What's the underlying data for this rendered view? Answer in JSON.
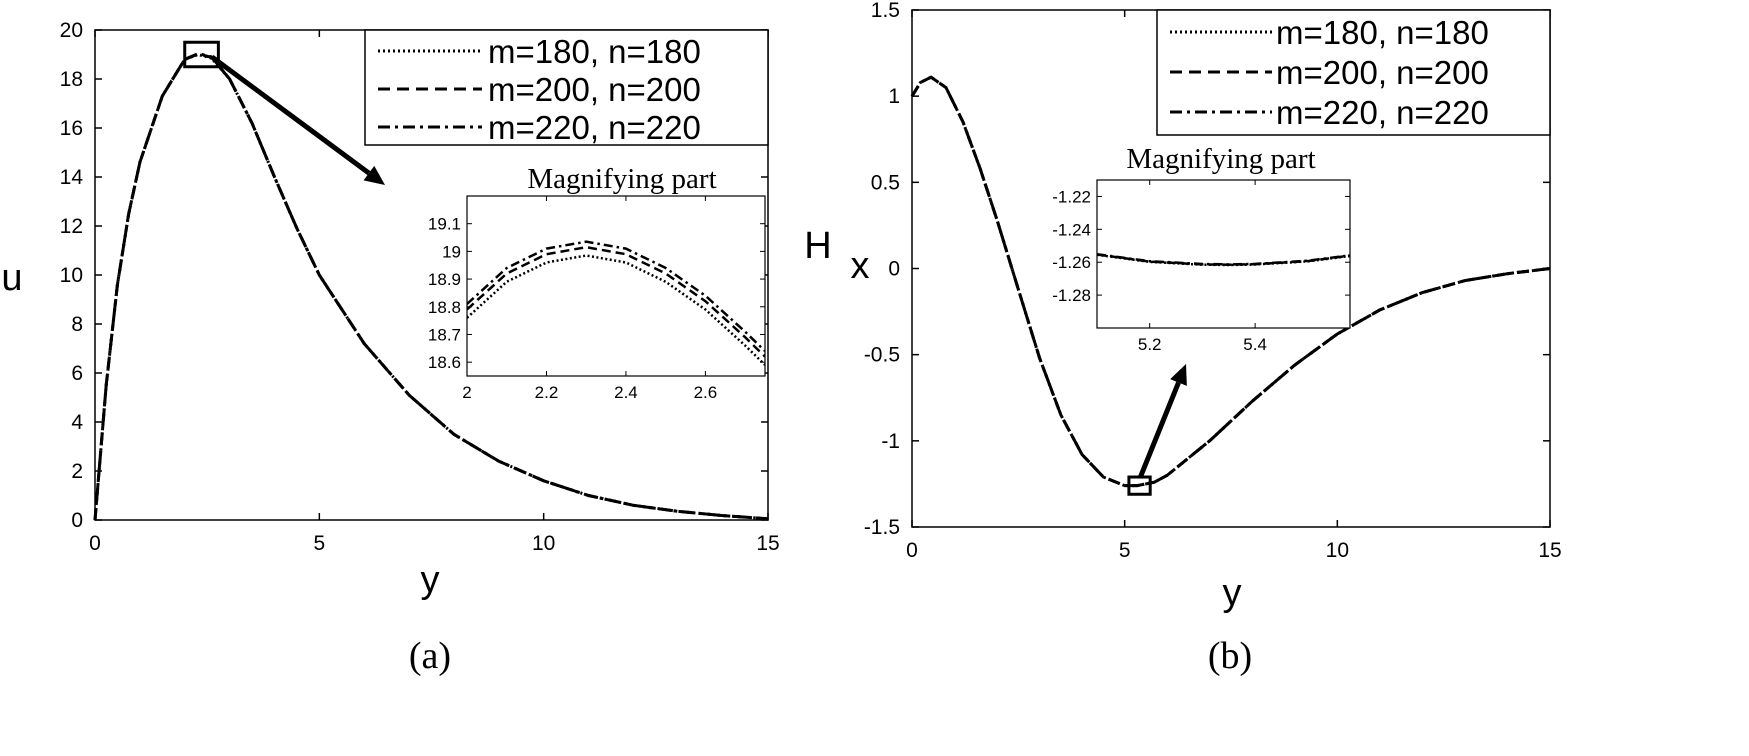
{
  "chart_data": [
    {
      "type": "line",
      "panel_label": "(a)",
      "xlabel": "y",
      "ylabel": "u",
      "xlim": [
        0,
        15
      ],
      "ylim": [
        0,
        20
      ],
      "x_ticks": [
        0,
        5,
        10,
        15
      ],
      "y_ticks": [
        0,
        2,
        4,
        6,
        8,
        10,
        12,
        14,
        16,
        18,
        20
      ],
      "x": [
        0,
        0.25,
        0.5,
        0.75,
        1,
        1.5,
        2,
        2.3,
        2.6,
        3,
        3.5,
        4,
        4.5,
        5,
        6,
        7,
        8,
        9,
        10,
        11,
        12,
        13,
        14,
        15
      ],
      "series": [
        {
          "name": "m=180, n=180",
          "style": "dotted",
          "values": [
            0,
            5.5,
            9.6,
            12.5,
            14.6,
            17.3,
            18.8,
            19.0,
            18.85,
            18.0,
            16.2,
            14.0,
            11.9,
            10.0,
            7.2,
            5.1,
            3.5,
            2.4,
            1.6,
            1.0,
            0.6,
            0.35,
            0.18,
            0.05
          ]
        },
        {
          "name": "m=200, n=200",
          "style": "dashed",
          "values": [
            0,
            5.5,
            9.6,
            12.5,
            14.6,
            17.3,
            18.8,
            19.02,
            18.88,
            18.0,
            16.2,
            14.0,
            11.9,
            10.0,
            7.2,
            5.1,
            3.5,
            2.4,
            1.6,
            1.0,
            0.6,
            0.35,
            0.18,
            0.05
          ]
        },
        {
          "name": "m=220, n=220",
          "style": "dashdot",
          "values": [
            0,
            5.5,
            9.6,
            12.5,
            14.6,
            17.3,
            18.8,
            19.04,
            18.9,
            18.0,
            16.2,
            14.0,
            11.9,
            10.0,
            7.2,
            5.1,
            3.5,
            2.4,
            1.6,
            1.0,
            0.6,
            0.35,
            0.18,
            0.05
          ]
        }
      ],
      "highlight_box": {
        "x": [
          2.0,
          2.75
        ],
        "y": [
          18.5,
          19.5
        ]
      },
      "legend_position": "top-right",
      "inset": {
        "title": "Magnifying part",
        "position": "right-middle",
        "xlim": [
          2,
          2.75
        ],
        "ylim": [
          18.55,
          19.2
        ],
        "x_ticks": [
          2,
          2.2,
          2.4,
          2.6
        ],
        "y_ticks": [
          18.6,
          18.7,
          18.8,
          18.9,
          19,
          19.1
        ],
        "x": [
          2,
          2.1,
          2.2,
          2.3,
          2.4,
          2.5,
          2.6,
          2.7,
          2.75
        ],
        "series": [
          {
            "name": "m=180, n=180",
            "style": "dotted",
            "values": [
              18.76,
              18.89,
              18.96,
              18.985,
              18.96,
              18.89,
              18.79,
              18.66,
              18.59
            ]
          },
          {
            "name": "m=200, n=200",
            "style": "dashed",
            "values": [
              18.79,
              18.92,
              18.99,
              19.015,
              18.99,
              18.92,
              18.82,
              18.69,
              18.62
            ]
          },
          {
            "name": "m=220, n=220",
            "style": "dashdot",
            "values": [
              18.81,
              18.94,
              19.01,
              19.035,
              19.01,
              18.94,
              18.84,
              18.71,
              18.64
            ]
          }
        ]
      }
    },
    {
      "type": "line",
      "panel_label": "(b)",
      "xlabel": "y",
      "ylabel": "H",
      "ylabel_sub": "x",
      "xlim": [
        0,
        15
      ],
      "ylim": [
        -1.5,
        1.5
      ],
      "x_ticks": [
        0,
        5,
        10,
        15
      ],
      "y_ticks": [
        -1.5,
        -1,
        -0.5,
        0,
        0.5,
        1,
        1.5
      ],
      "x": [
        0,
        0.2,
        0.45,
        0.8,
        1.2,
        1.6,
        2,
        2.5,
        3,
        3.5,
        4,
        4.5,
        5,
        5.3,
        5.7,
        6,
        7,
        8,
        9,
        10,
        11,
        12,
        13,
        14,
        15
      ],
      "series": [
        {
          "name": "m=180, n=180",
          "style": "dotted",
          "values": [
            1.0,
            1.08,
            1.11,
            1.05,
            0.85,
            0.58,
            0.28,
            -0.12,
            -0.52,
            -0.85,
            -1.08,
            -1.21,
            -1.26,
            -1.26,
            -1.24,
            -1.2,
            -1.0,
            -0.77,
            -0.56,
            -0.38,
            -0.24,
            -0.14,
            -0.07,
            -0.03,
            0.0
          ]
        },
        {
          "name": "m=200, n=200",
          "style": "dashed",
          "values": [
            1.0,
            1.08,
            1.11,
            1.05,
            0.85,
            0.58,
            0.28,
            -0.12,
            -0.52,
            -0.85,
            -1.08,
            -1.21,
            -1.26,
            -1.26,
            -1.24,
            -1.2,
            -1.0,
            -0.77,
            -0.56,
            -0.38,
            -0.24,
            -0.14,
            -0.07,
            -0.03,
            0.0
          ]
        },
        {
          "name": "m=220, n=220",
          "style": "dashdot",
          "values": [
            1.0,
            1.08,
            1.11,
            1.05,
            0.85,
            0.58,
            0.28,
            -0.12,
            -0.52,
            -0.85,
            -1.08,
            -1.21,
            -1.26,
            -1.26,
            -1.24,
            -1.2,
            -1.0,
            -0.77,
            -0.56,
            -0.38,
            -0.24,
            -0.14,
            -0.07,
            -0.03,
            0.0
          ]
        }
      ],
      "highlight_box": {
        "x": [
          5.1,
          5.6
        ],
        "y": [
          -1.31,
          -1.21
        ]
      },
      "legend_position": "top-right",
      "inset": {
        "title": "Magnifying part",
        "position": "center-top",
        "xlim": [
          5.1,
          5.58
        ],
        "ylim": [
          -1.3,
          -1.21
        ],
        "x_ticks": [
          5.2,
          5.4
        ],
        "y_ticks": [
          -1.22,
          -1.24,
          -1.26,
          -1.28
        ],
        "x": [
          5.1,
          5.2,
          5.3,
          5.35,
          5.4,
          5.5,
          5.58
        ],
        "series": [
          {
            "name": "m=180, n=180",
            "style": "dotted",
            "values": [
              -1.2555,
              -1.2598,
              -1.2615,
              -1.2617,
              -1.2614,
              -1.2595,
              -1.2562
            ]
          },
          {
            "name": "m=200, n=200",
            "style": "dashed",
            "values": [
              -1.2553,
              -1.2596,
              -1.2613,
              -1.2615,
              -1.2612,
              -1.2593,
              -1.256
            ]
          },
          {
            "name": "m=220, n=220",
            "style": "dashdot",
            "values": [
              -1.2551,
              -1.2594,
              -1.2611,
              -1.2613,
              -1.261,
              -1.2591,
              -1.2558
            ]
          }
        ]
      }
    }
  ]
}
